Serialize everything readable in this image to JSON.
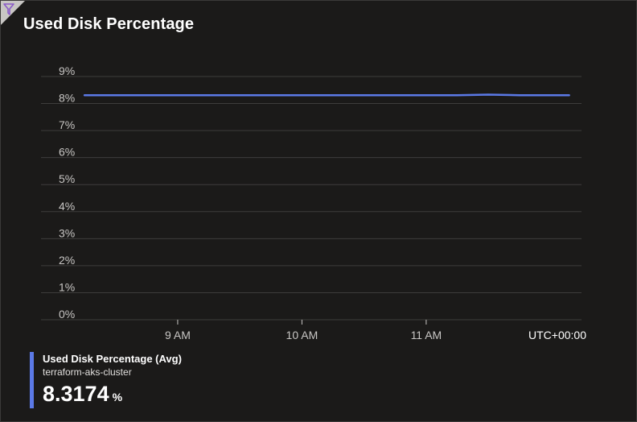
{
  "tile": {
    "title": "Used Disk Percentage"
  },
  "icons": {
    "corner": "filter-icon"
  },
  "colors": {
    "background": "#1b1a19",
    "gridline": "#3e3d3c",
    "series": "#5b79e6",
    "text_muted": "#c8c6c4",
    "corner": "#c8c6c4",
    "filter_glyph": "#8a5ac8"
  },
  "chart_data": {
    "type": "line",
    "title": "Used Disk Percentage",
    "xlabel": "",
    "ylabel": "",
    "y_ticks": [
      "0%",
      "1%",
      "2%",
      "3%",
      "4%",
      "5%",
      "6%",
      "7%",
      "8%",
      "9%"
    ],
    "ylim": [
      0,
      9
    ],
    "grid": true,
    "x_ticks": [
      "9 AM",
      "10 AM",
      "11 AM"
    ],
    "x_tick_hours": [
      9,
      10,
      11
    ],
    "xlim_hours": [
      7.9,
      12.25
    ],
    "timezone_label": "UTC+00:00",
    "series": [
      {
        "name": "Used Disk Percentage (Avg)",
        "x_hours": [
          8.25,
          8.5,
          8.75,
          9.0,
          9.25,
          9.5,
          9.75,
          10.0,
          10.25,
          10.5,
          10.75,
          11.0,
          11.25,
          11.5,
          11.75,
          12.15
        ],
        "y": [
          8.31,
          8.31,
          8.31,
          8.31,
          8.31,
          8.31,
          8.31,
          8.31,
          8.31,
          8.31,
          8.31,
          8.31,
          8.31,
          8.33,
          8.31,
          8.31
        ]
      }
    ],
    "legend": {
      "position": "bottom-left",
      "name": "Used Disk Percentage (Avg)",
      "resource": "terraform-aks-cluster",
      "value": "8.3174",
      "unit": "%"
    }
  }
}
